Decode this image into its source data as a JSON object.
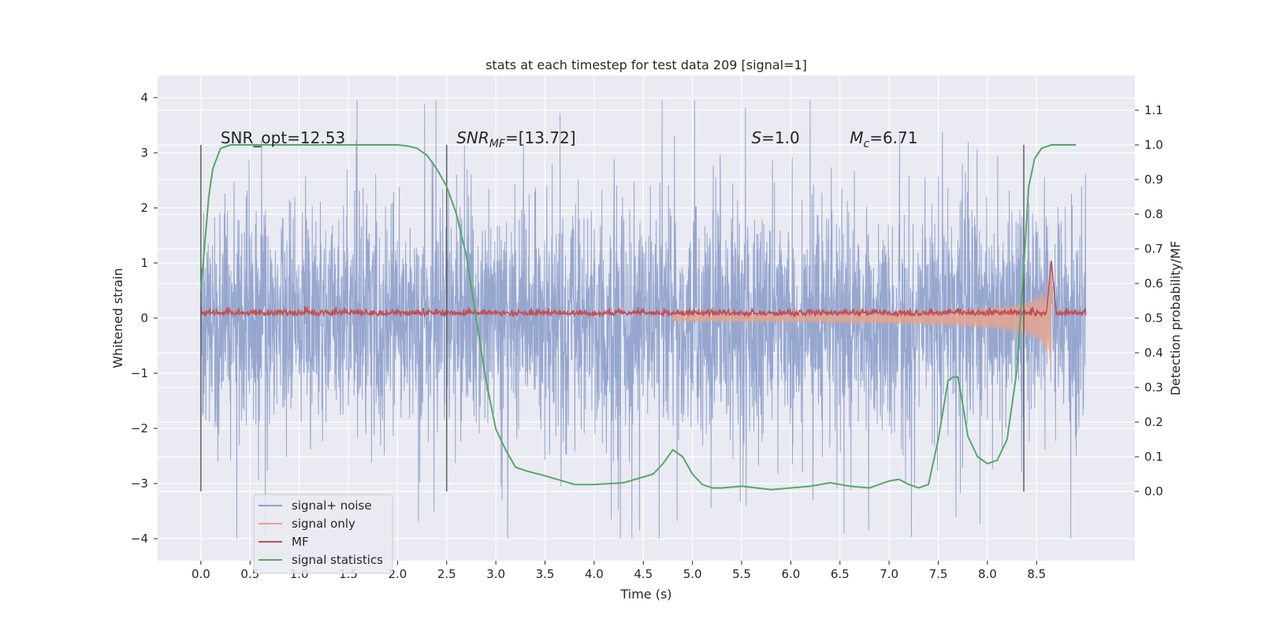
{
  "chart_data": {
    "type": "line",
    "title": "stats at each timestep for test data 209 [signal=1]",
    "xlabel": "Time (s)",
    "ylabel": "Whitened strain",
    "ylabel_right": "Detection probability/MF",
    "xlim": [
      -0.44,
      9.5
    ],
    "ylim": [
      -4.4,
      4.4
    ],
    "ylim_right": [
      -0.2,
      1.2
    ],
    "x_ticks": [
      "0.0",
      "0.5",
      "1.0",
      "1.5",
      "2.0",
      "2.5",
      "3.0",
      "3.5",
      "4.0",
      "4.5",
      "5.0",
      "5.5",
      "6.0",
      "6.5",
      "7.0",
      "7.5",
      "8.0",
      "8.5"
    ],
    "y_ticks_left": [
      "4",
      "3",
      "2",
      "1",
      "0",
      "−1",
      "−2",
      "−3",
      "−4"
    ],
    "y_ticks_right": [
      "1.1",
      "1.0",
      "0.9",
      "0.8",
      "0.7",
      "0.6",
      "0.5",
      "0.4",
      "0.3",
      "0.2",
      "0.1",
      "0.0"
    ],
    "annotations": [
      {
        "name": "snr-opt",
        "text": "SNR_opt=12.53",
        "x": 0.2,
        "y": 1.0
      },
      {
        "name": "snr-mf",
        "text": "SNR",
        "sub": "MF",
        "tail": "=[13.72]",
        "italic": true,
        "x": 2.6,
        "y": 1.0
      },
      {
        "name": "s-value",
        "text": "S",
        "tail": "=1.0",
        "italic": true,
        "x": 5.6,
        "y": 1.0
      },
      {
        "name": "mc-value",
        "text": "M",
        "sub": "c",
        "tail": "=6.71",
        "italic": true,
        "x": 6.6,
        "y": 1.0
      }
    ],
    "vlines": [
      0.0,
      2.5,
      8.37
    ],
    "legend_placement": "lower-left",
    "grid": true,
    "series": [
      {
        "name": "signal+ noise",
        "color": "#8da0cb",
        "axis": "left",
        "kind": "noise",
        "amplitude": 2.5,
        "x_range": [
          0.0,
          9.0
        ]
      },
      {
        "name": "signal only",
        "color": "#e5a58d",
        "axis": "left",
        "kind": "chirp",
        "x_range": [
          4.8,
          8.65
        ],
        "envelope_end": 1.2
      },
      {
        "name": "MF",
        "color": "#c44e52",
        "axis": "right",
        "kind": "mf",
        "x_range": [
          0.0,
          9.0
        ],
        "base": 0.51,
        "peak_x": 8.65,
        "peak_y": 0.66
      },
      {
        "name": "signal statistics",
        "color": "#55a868",
        "axis": "right",
        "x": [
          0.0,
          0.08,
          0.12,
          0.2,
          0.3,
          1.0,
          1.5,
          2.0,
          2.1,
          2.2,
          2.3,
          2.4,
          2.5,
          2.6,
          2.7,
          2.8,
          2.9,
          3.0,
          3.1,
          3.2,
          3.3,
          3.5,
          3.8,
          4.0,
          4.3,
          4.6,
          4.7,
          4.8,
          4.9,
          5.0,
          5.1,
          5.2,
          5.3,
          5.5,
          5.8,
          6.0,
          6.2,
          6.4,
          6.6,
          6.8,
          7.0,
          7.1,
          7.2,
          7.3,
          7.4,
          7.5,
          7.6,
          7.65,
          7.7,
          7.75,
          7.8,
          7.9,
          8.0,
          8.1,
          8.2,
          8.3,
          8.37,
          8.42,
          8.48,
          8.55,
          8.65,
          8.8,
          8.9
        ],
        "y": [
          0.58,
          0.85,
          0.93,
          0.99,
          1.0,
          1.0,
          1.0,
          1.0,
          0.997,
          0.99,
          0.97,
          0.93,
          0.88,
          0.8,
          0.68,
          0.5,
          0.32,
          0.18,
          0.12,
          0.07,
          0.06,
          0.045,
          0.02,
          0.02,
          0.025,
          0.05,
          0.08,
          0.12,
          0.1,
          0.05,
          0.02,
          0.01,
          0.01,
          0.015,
          0.005,
          0.01,
          0.015,
          0.025,
          0.015,
          0.01,
          0.03,
          0.035,
          0.02,
          0.01,
          0.02,
          0.15,
          0.32,
          0.33,
          0.33,
          0.25,
          0.16,
          0.1,
          0.08,
          0.09,
          0.15,
          0.35,
          0.65,
          0.88,
          0.96,
          0.99,
          1.0,
          1.0,
          1.0
        ]
      }
    ]
  }
}
